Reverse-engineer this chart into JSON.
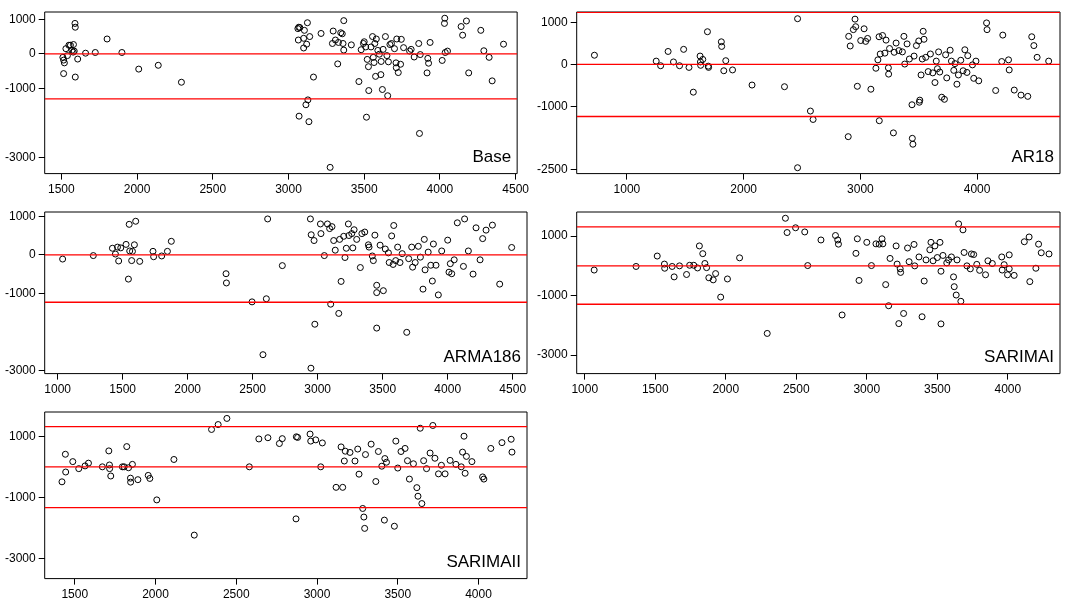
{
  "chart_data": [
    {
      "type": "scatter",
      "annotations": [
        "Base"
      ],
      "marker": "circle",
      "grid": false,
      "legend": false,
      "color": "#000000",
      "xlim": [
        1390,
        4510
      ],
      "ylim": [
        -3460,
        1210
      ],
      "xticks": [
        1500,
        2000,
        2500,
        3000,
        3500,
        4000,
        4500
      ],
      "yticks": [
        1000,
        0,
        -1000,
        -3000
      ],
      "ref_lines": [
        {
          "axis": "y",
          "value": 0,
          "color": "#ff0000"
        },
        {
          "axis": "y",
          "value": -1300,
          "color": "#ff0000"
        }
      ],
      "x": [
        1510,
        1515,
        1520,
        1515,
        1530,
        1540,
        1550,
        1560,
        1570,
        1578,
        1580,
        1585,
        1590,
        1592,
        1592,
        1608,
        1660,
        1724,
        1802,
        1900,
        2011,
        2140,
        2293,
        3062,
        3068,
        3075,
        3065,
        3100,
        3105,
        3125,
        3120,
        3100,
        3140,
        3165,
        3128,
        3115,
        3070,
        3135,
        3215,
        3290,
        3295,
        3310,
        3330,
        3345,
        3355,
        3360,
        3365,
        3365,
        3325,
        3415,
        3275,
        3465,
        3480,
        3495,
        3500,
        3510,
        3520,
        3515,
        3528,
        3530,
        3545,
        3555,
        3560,
        3565,
        3570,
        3575,
        3580,
        3590,
        3600,
        3610,
        3612,
        3620,
        3625,
        3640,
        3650,
        3655,
        3660,
        3670,
        3680,
        3700,
        3710,
        3712,
        3715,
        3725,
        3740,
        3745,
        3760,
        3800,
        3810,
        3830,
        3860,
        3865,
        3870,
        3915,
        3920,
        3925,
        3935,
        4015,
        4030,
        4032,
        4035,
        4050,
        4140,
        4150,
        4175,
        4190,
        4270,
        4290,
        4325,
        4345,
        4420
      ],
      "values": [
        -100,
        -180,
        -260,
        -570,
        150,
        -50,
        250,
        250,
        100,
        50,
        270,
        80,
        880,
        770,
        -670,
        -150,
        20,
        40,
        430,
        40,
        -440,
        -330,
        -820,
        730,
        770,
        760,
        400,
        450,
        680,
        900,
        280,
        170,
        500,
        -670,
        -1330,
        -1470,
        -1800,
        -1960,
        590,
        300,
        660,
        400,
        330,
        610,
        580,
        300,
        110,
        960,
        -290,
        260,
        -3280,
        -800,
        120,
        300,
        350,
        200,
        -160,
        -1830,
        -370,
        -1060,
        200,
        500,
        -100,
        -250,
        300,
        -650,
        430,
        100,
        -10,
        -600,
        -220,
        -1030,
        130,
        500,
        -50,
        -1210,
        -230,
        270,
        300,
        150,
        -260,
        -400,
        430,
        -540,
        -300,
        420,
        180,
        80,
        130,
        -90,
        300,
        -2300,
        -20,
        -550,
        -130,
        -270,
        330,
        -190,
        880,
        1030,
        40,
        80,
        790,
        540,
        950,
        -550,
        680,
        90,
        -100,
        -780,
        280
      ]
    },
    {
      "type": "scatter",
      "annotations": [
        "AR18"
      ],
      "marker": "circle",
      "grid": false,
      "legend": false,
      "color": "#000000",
      "xlim": [
        570,
        4710
      ],
      "ylim": [
        -2600,
        1250
      ],
      "xticks": [
        1000,
        2000,
        3000,
        4000
      ],
      "yticks": [
        1000,
        0,
        -1000,
        -2500
      ],
      "ref_lines": [
        {
          "axis": "y",
          "value": 1240,
          "color": "#ff0000"
        },
        {
          "axis": "y",
          "value": 0,
          "color": "#ff0000"
        },
        {
          "axis": "y",
          "value": -1240,
          "color": "#ff0000"
        }
      ],
      "x": [
        722,
        1251,
        1289,
        1353,
        1399,
        1451,
        1486,
        1532,
        1569,
        1627,
        1630,
        1632,
        1650,
        1697,
        1700,
        1690,
        1809,
        1812,
        1830,
        1847,
        1905,
        2072,
        2350,
        2462,
        2462,
        2572,
        2595,
        2896,
        2900,
        2913,
        2940,
        2954,
        2960,
        2974,
        3003,
        3032,
        3045,
        3062,
        3090,
        3133,
        3150,
        3162,
        3160,
        3170,
        3190,
        3210,
        3220,
        3240,
        3242,
        3250,
        3283,
        3290,
        3306,
        3330,
        3360,
        3373,
        3380,
        3400,
        3420,
        3442,
        3445,
        3450,
        3460,
        3480,
        3500,
        3505,
        3509,
        3520,
        3530,
        3538,
        3545,
        3560,
        3581,
        3600,
        3620,
        3639,
        3650,
        3660,
        3670,
        3680,
        3697,
        3720,
        3730,
        3740,
        3769,
        3780,
        3800,
        3810,
        3827,
        3840,
        3860,
        3880,
        3895,
        3913,
        3920,
        3960,
        3971,
        3990,
        4014,
        4081,
        4085,
        4159,
        4211,
        4220,
        4269,
        4275,
        4318,
        4376,
        4434,
        4468,
        4486,
        4514,
        4613
      ],
      "values": [
        220,
        80,
        -30,
        310,
        60,
        -30,
        360,
        -70,
        -660,
        200,
        60,
        -20,
        120,
        -40,
        -70,
        780,
        540,
        430,
        -150,
        90,
        -130,
        -490,
        -530,
        1090,
        -2460,
        -1110,
        -1310,
        -1720,
        670,
        440,
        830,
        1080,
        900,
        -520,
        570,
        850,
        550,
        620,
        -590,
        -90,
        110,
        -1340,
        660,
        250,
        690,
        270,
        580,
        -80,
        -230,
        380,
        -1630,
        290,
        510,
        330,
        300,
        670,
        10,
        490,
        130,
        -960,
        -1760,
        -1900,
        200,
        450,
        560,
        -900,
        -850,
        -250,
        130,
        790,
        600,
        170,
        -170,
        250,
        -200,
        -430,
        80,
        -100,
        300,
        -180,
        -780,
        -830,
        230,
        -320,
        340,
        80,
        -140,
        20,
        -470,
        -250,
        100,
        -150,
        350,
        -190,
        210,
        -10,
        -330,
        80,
        -390,
        990,
        830,
        -620,
        70,
        700,
        110,
        -130,
        -610,
        -730,
        -760,
        660,
        450,
        170,
        80
      ]
    },
    {
      "type": "scatter",
      "annotations": [
        "ARMA186"
      ],
      "marker": "circle",
      "grid": false,
      "legend": false,
      "color": "#000000",
      "xlim": [
        900,
        4610
      ],
      "ylim": [
        -3080,
        1110
      ],
      "xticks": [
        1000,
        1500,
        2000,
        2500,
        3000,
        3500,
        4000,
        4500
      ],
      "yticks": [
        1000,
        0,
        -1000,
        -3000
      ],
      "ref_lines": [
        {
          "axis": "y",
          "value": 0,
          "color": "#ff0000"
        },
        {
          "axis": "y",
          "value": -1230,
          "color": "#ff0000"
        }
      ],
      "x": [
        1038,
        1274,
        1421,
        1444,
        1460,
        1469,
        1485,
        1526,
        1544,
        1550,
        1554,
        1569,
        1575,
        1590,
        1600,
        1631,
        1733,
        1738,
        1800,
        1844,
        1874,
        2295,
        2298,
        2495,
        2579,
        2605,
        2615,
        2728,
        2944,
        2948,
        2950,
        2972,
        2978,
        3021,
        3025,
        3051,
        3075,
        3092,
        3100,
        3110,
        3123,
        3135,
        3162,
        3169,
        3180,
        3200,
        3210,
        3220,
        3236,
        3240,
        3262,
        3270,
        3280,
        3300,
        3328,
        3340,
        3362,
        3390,
        3395,
        3420,
        3428,
        3440,
        3454,
        3454,
        3454,
        3480,
        3505,
        3520,
        3544,
        3550,
        3569,
        3580,
        3585,
        3600,
        3615,
        3633,
        3650,
        3685,
        3700,
        3723,
        3730,
        3750,
        3774,
        3790,
        3810,
        3820,
        3826,
        3850,
        3870,
        3882,
        3890,
        3910,
        3928,
        3954,
        4000,
        4010,
        4020,
        4031,
        4050,
        4074,
        4121,
        4130,
        4159,
        4195,
        4218,
        4249,
        4269,
        4295,
        4344,
        4400,
        4492
      ],
      "values": [
        -110,
        -20,
        170,
        20,
        200,
        -160,
        180,
        270,
        -630,
        790,
        100,
        -150,
        90,
        260,
        870,
        -170,
        90,
        -50,
        -30,
        90,
        350,
        -490,
        -730,
        -1220,
        -2590,
        -1140,
        930,
        -280,
        930,
        -2940,
        520,
        370,
        -1800,
        800,
        550,
        -20,
        800,
        680,
        -1280,
        730,
        370,
        120,
        -1520,
        400,
        -690,
        480,
        -70,
        170,
        800,
        500,
        550,
        180,
        650,
        400,
        -330,
        550,
        590,
        260,
        200,
        -30,
        -150,
        510,
        -790,
        -980,
        -1900,
        250,
        -930,
        150,
        50,
        -200,
        490,
        -250,
        760,
        -150,
        200,
        -200,
        30,
        -2010,
        -100,
        200,
        -320,
        -200,
        220,
        -60,
        -890,
        400,
        -390,
        70,
        -270,
        -680,
        280,
        -270,
        -1040,
        100,
        380,
        -450,
        -230,
        -490,
        -130,
        830,
        -300,
        930,
        100,
        -500,
        700,
        -130,
        420,
        640,
        770,
        -760,
        190
      ]
    },
    {
      "type": "scatter",
      "annotations": [
        "SARIMAI"
      ],
      "marker": "circle",
      "grid": false,
      "legend": false,
      "color": "#000000",
      "xlim": [
        943,
        4370
      ],
      "ylim": [
        -3620,
        1810
      ],
      "xticks": [
        1000,
        1500,
        2000,
        2500,
        3000,
        3500,
        4000
      ],
      "yticks": [
        1000,
        -1000,
        -3000
      ],
      "ref_lines": [
        {
          "axis": "y",
          "value": 1310,
          "color": "#ff0000"
        },
        {
          "axis": "y",
          "value": 0,
          "color": "#ff0000"
        },
        {
          "axis": "y",
          "value": -1290,
          "color": "#ff0000"
        }
      ],
      "x": [
        1067,
        1364,
        1514,
        1565,
        1567,
        1620,
        1634,
        1672,
        1722,
        1744,
        1773,
        1800,
        1813,
        1837,
        1852,
        1864,
        1880,
        1911,
        1928,
        1964,
        2012,
        2098,
        2294,
        2423,
        2435,
        2495,
        2560,
        2581,
        2675,
        2778,
        2794,
        2799,
        2825,
        2923,
        2933,
        2945,
        3000,
        3033,
        3065,
        3088,
        3108,
        3114,
        3134,
        3155,
        3165,
        3208,
        3215,
        3227,
        3237,
        3240,
        3261,
        3289,
        3300,
        3335,
        3340,
        3370,
        3392,
        3407,
        3420,
        3447,
        3455,
        3470,
        3483,
        3500,
        3519,
        3526,
        3526,
        3540,
        3567,
        3580,
        3600,
        3615,
        3620,
        3634,
        3640,
        3651,
        3667,
        3682,
        3690,
        3710,
        3734,
        3742,
        3758,
        3780,
        3800,
        3842,
        3859,
        3890,
        3957,
        3960,
        3974,
        3998,
        4010,
        4010,
        4045,
        4117,
        4151,
        4156,
        4199,
        4218,
        4237,
        4292
      ],
      "values": [
        -140,
        -20,
        330,
        60,
        -80,
        -20,
        -370,
        0,
        -290,
        20,
        20,
        -70,
        670,
        410,
        80,
        -60,
        -400,
        -470,
        -260,
        -1050,
        -440,
        270,
        -2270,
        1600,
        1120,
        1280,
        1140,
        10,
        870,
        1020,
        870,
        730,
        -1650,
        420,
        910,
        -490,
        790,
        10,
        740,
        730,
        910,
        740,
        -630,
        -1340,
        250,
        670,
        60,
        -1940,
        -100,
        -220,
        -1600,
        600,
        140,
        720,
        0,
        300,
        -1710,
        -510,
        200,
        540,
        790,
        170,
        670,
        280,
        790,
        -1950,
        -180,
        350,
        100,
        200,
        300,
        -370,
        -700,
        -980,
        200,
        1410,
        -1190,
        1210,
        450,
        0,
        -100,
        400,
        380,
        50,
        -150,
        -300,
        170,
        80,
        300,
        -140,
        40,
        -300,
        370,
        -100,
        -320,
        810,
        970,
        -530,
        -80,
        730,
        440,
        400
      ]
    },
    {
      "type": "scatter",
      "annotations": [
        "SARIMAII"
      ],
      "marker": "circle",
      "grid": false,
      "legend": false,
      "color": "#000000",
      "xlim": [
        1314,
        4300
      ],
      "ylim": [
        -3650,
        1790
      ],
      "xticks": [
        1500,
        2000,
        2500,
        3000,
        3500,
        4000
      ],
      "yticks": [
        1000,
        -1000,
        -3000
      ],
      "ref_lines": [
        {
          "axis": "y",
          "value": 1310,
          "color": "#ff0000"
        },
        {
          "axis": "y",
          "value": 0,
          "color": "#ff0000"
        },
        {
          "axis": "y",
          "value": -1330,
          "color": "#ff0000"
        }
      ],
      "x": [
        1421,
        1442,
        1444,
        1488,
        1525,
        1564,
        1585,
        1671,
        1711,
        1715,
        1716,
        1723,
        1795,
        1806,
        1822,
        1833,
        1845,
        1846,
        1857,
        1891,
        1955,
        1965,
        2008,
        2114,
        2240,
        2347,
        2388,
        2442,
        2581,
        2640,
        2696,
        2767,
        2785,
        2870,
        2872,
        2880,
        2957,
        2961,
        2992,
        3023,
        3033,
        3118,
        3149,
        3159,
        3169,
        3175,
        3204,
        3235,
        3252,
        3260,
        3283,
        3290,
        3295,
        3300,
        3335,
        3364,
        3380,
        3401,
        3417,
        3420,
        3430,
        3479,
        3488,
        3500,
        3520,
        3545,
        3560,
        3572,
        3597,
        3618,
        3625,
        3639,
        3649,
        3660,
        3678,
        3700,
        3717,
        3730,
        3752,
        3770,
        3793,
        3824,
        3860,
        3893,
        3901,
        3910,
        3917,
        3925,
        3959,
        4025,
        4033,
        4076,
        4145,
        4202,
        4207
      ],
      "values": [
        -490,
        410,
        -170,
        170,
        -60,
        30,
        120,
        0,
        520,
        60,
        -60,
        -300,
        0,
        0,
        660,
        -30,
        -370,
        -500,
        80,
        -420,
        -280,
        -380,
        -1080,
        240,
        -2230,
        1220,
        1380,
        1580,
        0,
        910,
        950,
        760,
        920,
        -1700,
        980,
        960,
        1070,
        840,
        880,
        0,
        780,
        -670,
        650,
        -670,
        190,
        510,
        470,
        190,
        580,
        -240,
        -1360,
        -1640,
        -2010,
        400,
        740,
        -480,
        500,
        20,
        -1740,
        270,
        150,
        -1940,
        840,
        -40,
        500,
        600,
        200,
        -400,
        100,
        -680,
        -960,
        1260,
        -1200,
        200,
        -60,
        450,
        1350,
        280,
        -230,
        50,
        -230,
        210,
        80,
        0,
        480,
        1000,
        -210,
        340,
        170,
        -330,
        -400,
        600,
        790,
        900,
        480
      ]
    }
  ]
}
